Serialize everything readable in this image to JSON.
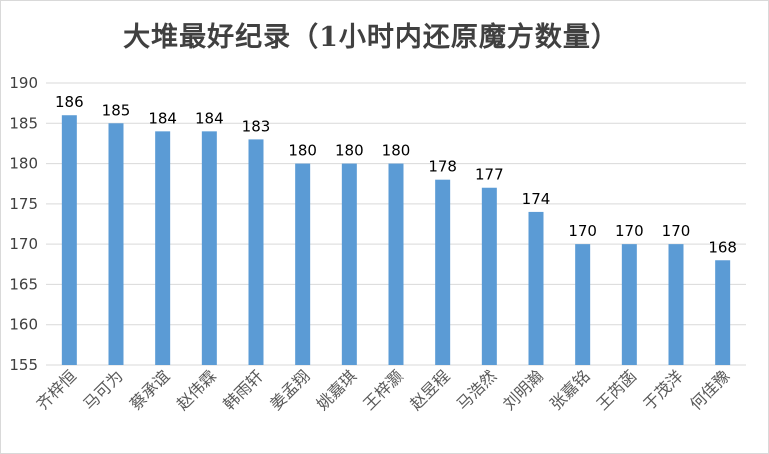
{
  "chart_data": {
    "type": "bar",
    "title": "大堆最好纪录（1小时内还原魔方数量）",
    "xlabel": "",
    "ylabel": "",
    "ylim": [
      155,
      190
    ],
    "yticks": [
      155,
      160,
      165,
      170,
      175,
      180,
      185,
      190
    ],
    "grid": true,
    "legend": "none",
    "bar_color": "#5B9BD5",
    "categories": [
      "齐梓恒",
      "马可为",
      "蔡承谊",
      "赵伟霖",
      "韩雨轩",
      "姜孟翔",
      "姚嘉琪",
      "王梓灏",
      "赵昱程",
      "马浩然",
      "刘明瀚",
      "张嘉铭",
      "王芮菡",
      "于茂洋",
      "何佳豫"
    ],
    "values": [
      186,
      185,
      184,
      184,
      183,
      180,
      180,
      180,
      178,
      177,
      174,
      170,
      170,
      170,
      168
    ]
  }
}
